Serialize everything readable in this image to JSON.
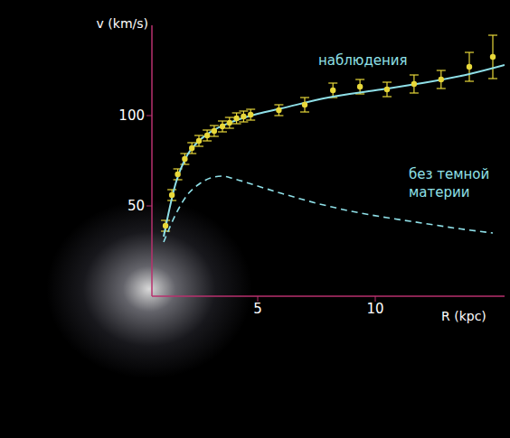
{
  "chart_data": {
    "type": "line",
    "x_label": "R (kpc)",
    "y_label": "v (km/s)",
    "xlim": [
      0.5,
      15.5
    ],
    "ylim": [
      0,
      150
    ],
    "xticks": [
      5,
      10
    ],
    "yticks": [
      50,
      100
    ],
    "grid": false,
    "series": [
      {
        "name": "наблюдения",
        "type": "scatter",
        "color": "#e8d83a",
        "marker": "circle",
        "x": [
          1.08,
          1.35,
          1.6,
          1.9,
          2.2,
          2.5,
          2.85,
          3.15,
          3.5,
          3.8,
          4.1,
          4.4,
          4.7,
          5.9,
          7.0,
          8.2,
          9.35,
          10.5,
          11.65,
          12.8,
          14.0,
          15.0
        ],
        "values": [
          39,
          56,
          67.5,
          76,
          82,
          86,
          89,
          91.5,
          94,
          96,
          98.5,
          99.5,
          100.5,
          103,
          106,
          114,
          116,
          114.5,
          117.5,
          120,
          127,
          132.5
        ],
        "errors": [
          3,
          3,
          3,
          3,
          3,
          3,
          3,
          3,
          3,
          3,
          3,
          3,
          3,
          3,
          4,
          4,
          4,
          4,
          5,
          5,
          8,
          12
        ]
      },
      {
        "type": "line",
        "color": "#8fe0e8",
        "line_style": "solid",
        "x": [
          1.0,
          1.5,
          2.0,
          2.5,
          3.0,
          4.0,
          5.0,
          6.0,
          8.0,
          10.0,
          12.0,
          14.0,
          15.5
        ],
        "values": [
          33,
          62,
          78,
          86,
          91,
          97,
          101,
          104,
          110,
          114,
          118,
          123,
          128
        ]
      },
      {
        "name": "без темной материи",
        "type": "line",
        "color": "#8fe0e8",
        "line_style": "dashed",
        "x": [
          1.0,
          1.5,
          2.0,
          2.5,
          3.0,
          3.5,
          4.0,
          5.0,
          6.0,
          7.5,
          9.0,
          10.5,
          12.0,
          13.5,
          15.0
        ],
        "values": [
          30,
          45,
          56,
          62,
          65.5,
          66.5,
          65,
          61,
          57,
          51.5,
          47,
          43.5,
          40.5,
          37.5,
          35
        ]
      }
    ]
  }
}
